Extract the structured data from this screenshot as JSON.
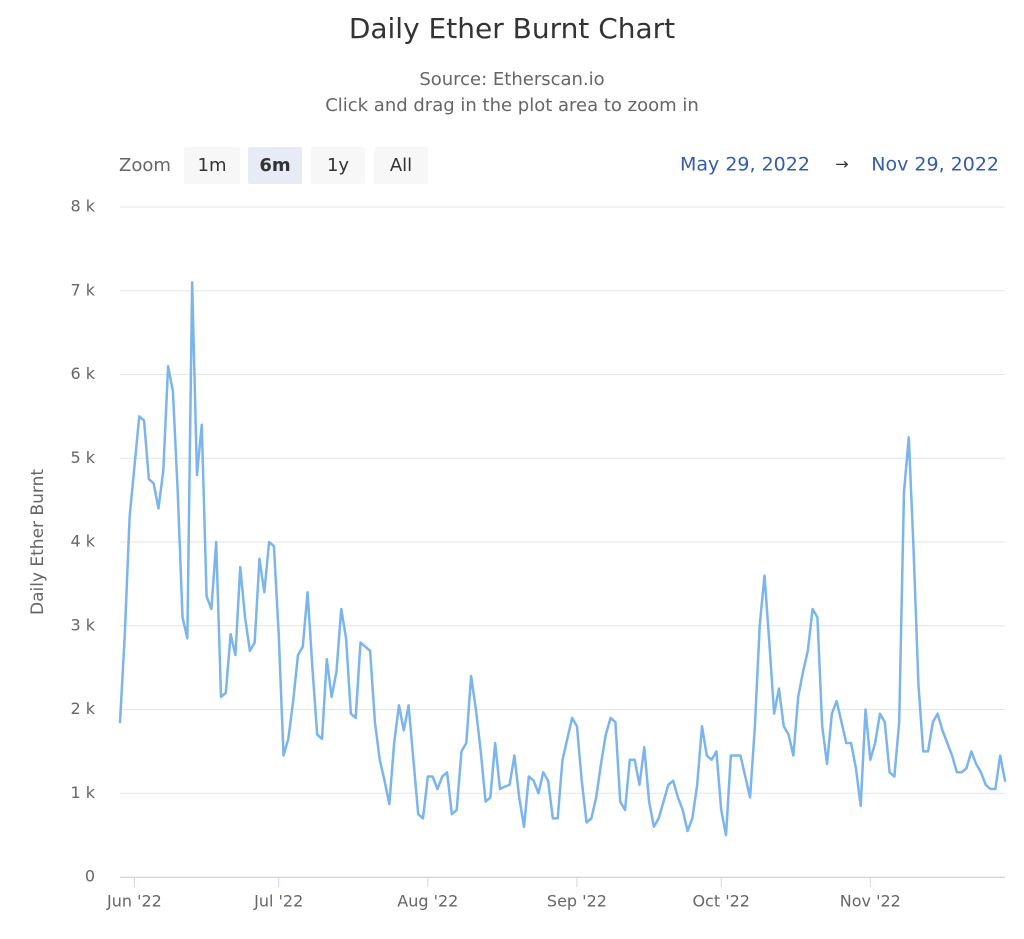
{
  "chart_data": {
    "type": "line",
    "title": "Daily Ether Burnt Chart",
    "subtitle": [
      "Source: Etherscan.io",
      "Click and drag in the plot area to zoom in"
    ],
    "y_label": "Daily Ether Burnt",
    "range_selector": {
      "label": "Zoom",
      "buttons": [
        "1m",
        "6m",
        "1y",
        "All"
      ],
      "selected": 1,
      "from": "May 29, 2022",
      "arrow": "→",
      "to": "Nov 29, 2022"
    },
    "color": "#7cb5ec",
    "grid": true,
    "xlim": [
      "2022-05-29",
      "2022-11-29"
    ],
    "xticks": [
      {
        "value": "2022-06-01",
        "label": "Jun '22"
      },
      {
        "value": "2022-07-01",
        "label": "Jul '22"
      },
      {
        "value": "2022-08-01",
        "label": "Aug '22"
      },
      {
        "value": "2022-09-01",
        "label": "Sep '22"
      },
      {
        "value": "2022-10-01",
        "label": "Oct '22"
      },
      {
        "value": "2022-11-01",
        "label": "Nov '22"
      }
    ],
    "ylim": [
      0,
      8000
    ],
    "yticks": [
      0,
      {
        "value": 1000,
        "label": "1 k"
      },
      {
        "value": 2000,
        "label": "2 k"
      },
      {
        "value": 3000,
        "label": "3 k"
      },
      {
        "value": 4000,
        "label": "4 k"
      },
      {
        "value": 5000,
        "label": "5 k"
      },
      {
        "value": 6000,
        "label": "6 k"
      },
      {
        "value": 7000,
        "label": "7 k"
      },
      {
        "value": 8000,
        "label": "8 k"
      }
    ],
    "x": [
      "2022-05-29",
      "2022-05-30",
      "2022-05-31",
      "2022-06-01",
      "2022-06-02",
      "2022-06-03",
      "2022-06-04",
      "2022-06-05",
      "2022-06-06",
      "2022-06-07",
      "2022-06-08",
      "2022-06-09",
      "2022-06-10",
      "2022-06-11",
      "2022-06-12",
      "2022-06-13",
      "2022-06-14",
      "2022-06-15",
      "2022-06-16",
      "2022-06-17",
      "2022-06-18",
      "2022-06-19",
      "2022-06-20",
      "2022-06-21",
      "2022-06-22",
      "2022-06-23",
      "2022-06-24",
      "2022-06-25",
      "2022-06-26",
      "2022-06-27",
      "2022-06-28",
      "2022-06-29",
      "2022-06-30",
      "2022-07-01",
      "2022-07-02",
      "2022-07-03",
      "2022-07-04",
      "2022-07-05",
      "2022-07-06",
      "2022-07-07",
      "2022-07-08",
      "2022-07-09",
      "2022-07-10",
      "2022-07-11",
      "2022-07-12",
      "2022-07-13",
      "2022-07-14",
      "2022-07-15",
      "2022-07-16",
      "2022-07-17",
      "2022-07-18",
      "2022-07-19",
      "2022-07-20",
      "2022-07-21",
      "2022-07-22",
      "2022-07-23",
      "2022-07-24",
      "2022-07-25",
      "2022-07-26",
      "2022-07-27",
      "2022-07-28",
      "2022-07-29",
      "2022-07-30",
      "2022-07-31",
      "2022-08-01",
      "2022-08-02",
      "2022-08-03",
      "2022-08-04",
      "2022-08-05",
      "2022-08-06",
      "2022-08-07",
      "2022-08-08",
      "2022-08-09",
      "2022-08-10",
      "2022-08-11",
      "2022-08-12",
      "2022-08-13",
      "2022-08-14",
      "2022-08-15",
      "2022-08-16",
      "2022-08-17",
      "2022-08-18",
      "2022-08-19",
      "2022-08-20",
      "2022-08-21",
      "2022-08-22",
      "2022-08-23",
      "2022-08-24",
      "2022-08-25",
      "2022-08-26",
      "2022-08-27",
      "2022-08-28",
      "2022-08-29",
      "2022-08-30",
      "2022-08-31",
      "2022-09-01",
      "2022-09-02",
      "2022-09-03",
      "2022-09-04",
      "2022-09-05",
      "2022-09-06",
      "2022-09-07",
      "2022-09-08",
      "2022-09-09",
      "2022-09-10",
      "2022-09-11",
      "2022-09-12",
      "2022-09-13",
      "2022-09-14",
      "2022-09-15",
      "2022-09-16",
      "2022-09-17",
      "2022-09-18",
      "2022-09-19",
      "2022-09-20",
      "2022-09-21",
      "2022-09-22",
      "2022-09-23",
      "2022-09-24",
      "2022-09-25",
      "2022-09-26",
      "2022-09-27",
      "2022-09-28",
      "2022-09-29",
      "2022-09-30",
      "2022-10-01",
      "2022-10-02",
      "2022-10-03",
      "2022-10-04",
      "2022-10-05",
      "2022-10-06",
      "2022-10-07",
      "2022-10-08",
      "2022-10-09",
      "2022-10-10",
      "2022-10-11",
      "2022-10-12",
      "2022-10-13",
      "2022-10-14",
      "2022-10-15",
      "2022-10-16",
      "2022-10-17",
      "2022-10-18",
      "2022-10-19",
      "2022-10-20",
      "2022-10-21",
      "2022-10-22",
      "2022-10-23",
      "2022-10-24",
      "2022-10-25",
      "2022-10-26",
      "2022-10-27",
      "2022-10-28",
      "2022-10-29",
      "2022-10-30",
      "2022-10-31",
      "2022-11-01",
      "2022-11-02",
      "2022-11-03",
      "2022-11-04",
      "2022-11-05",
      "2022-11-06",
      "2022-11-07",
      "2022-11-08",
      "2022-11-09",
      "2022-11-10",
      "2022-11-11",
      "2022-11-12",
      "2022-11-13",
      "2022-11-14",
      "2022-11-15",
      "2022-11-16",
      "2022-11-17",
      "2022-11-18",
      "2022-11-19",
      "2022-11-20",
      "2022-11-21",
      "2022-11-22",
      "2022-11-23",
      "2022-11-24",
      "2022-11-25",
      "2022-11-26",
      "2022-11-27",
      "2022-11-28",
      "2022-11-29"
    ],
    "values": [
      1850,
      2900,
      4300,
      4900,
      5500,
      5450,
      4750,
      4700,
      4400,
      4850,
      6100,
      5800,
      4600,
      3100,
      2850,
      7100,
      4800,
      5400,
      3350,
      3200,
      4000,
      2150,
      2200,
      2900,
      2650,
      3700,
      3100,
      2700,
      2800,
      3800,
      3400,
      4000,
      3950,
      2900,
      1450,
      1650,
      2100,
      2650,
      2750,
      3400,
      2500,
      1700,
      1650,
      2600,
      2150,
      2450,
      3200,
      2850,
      1950,
      1900,
      2800,
      2750,
      2700,
      1850,
      1400,
      1150,
      870,
      1600,
      2050,
      1750,
      2050,
      1400,
      750,
      700,
      1200,
      1200,
      1050,
      1200,
      1250,
      750,
      800,
      1500,
      1600,
      2400,
      2000,
      1500,
      900,
      950,
      1600,
      1050,
      1080,
      1100,
      1450,
      950,
      600,
      1200,
      1150,
      1000,
      1250,
      1150,
      700,
      700,
      1400,
      1650,
      1900,
      1800,
      1150,
      650,
      700,
      950,
      1350,
      1700,
      1900,
      1850,
      900,
      800,
      1400,
      1400,
      1100,
      1550,
      900,
      600,
      700,
      900,
      1100,
      1150,
      950,
      800,
      550,
      700,
      1100,
      1800,
      1450,
      1400,
      1500,
      800,
      500,
      1450,
      1450,
      1450,
      1200,
      950,
      1800,
      3000,
      3600,
      2800,
      1950,
      2250,
      1800,
      1700,
      1450,
      2150,
      2450,
      2700,
      3200,
      3100,
      1800,
      1350,
      1950,
      2100,
      1850,
      1600,
      1600,
      1300,
      850,
      2000,
      1400,
      1600,
      1950,
      1850,
      1250,
      1200,
      1850,
      4600,
      5250,
      3900,
      2300,
      1500,
      1500,
      1850,
      1950,
      1750,
      1600,
      1450,
      1250,
      1250,
      1300,
      1500,
      1350,
      1250,
      1100,
      1050,
      1050,
      1450,
      1150
    ]
  }
}
